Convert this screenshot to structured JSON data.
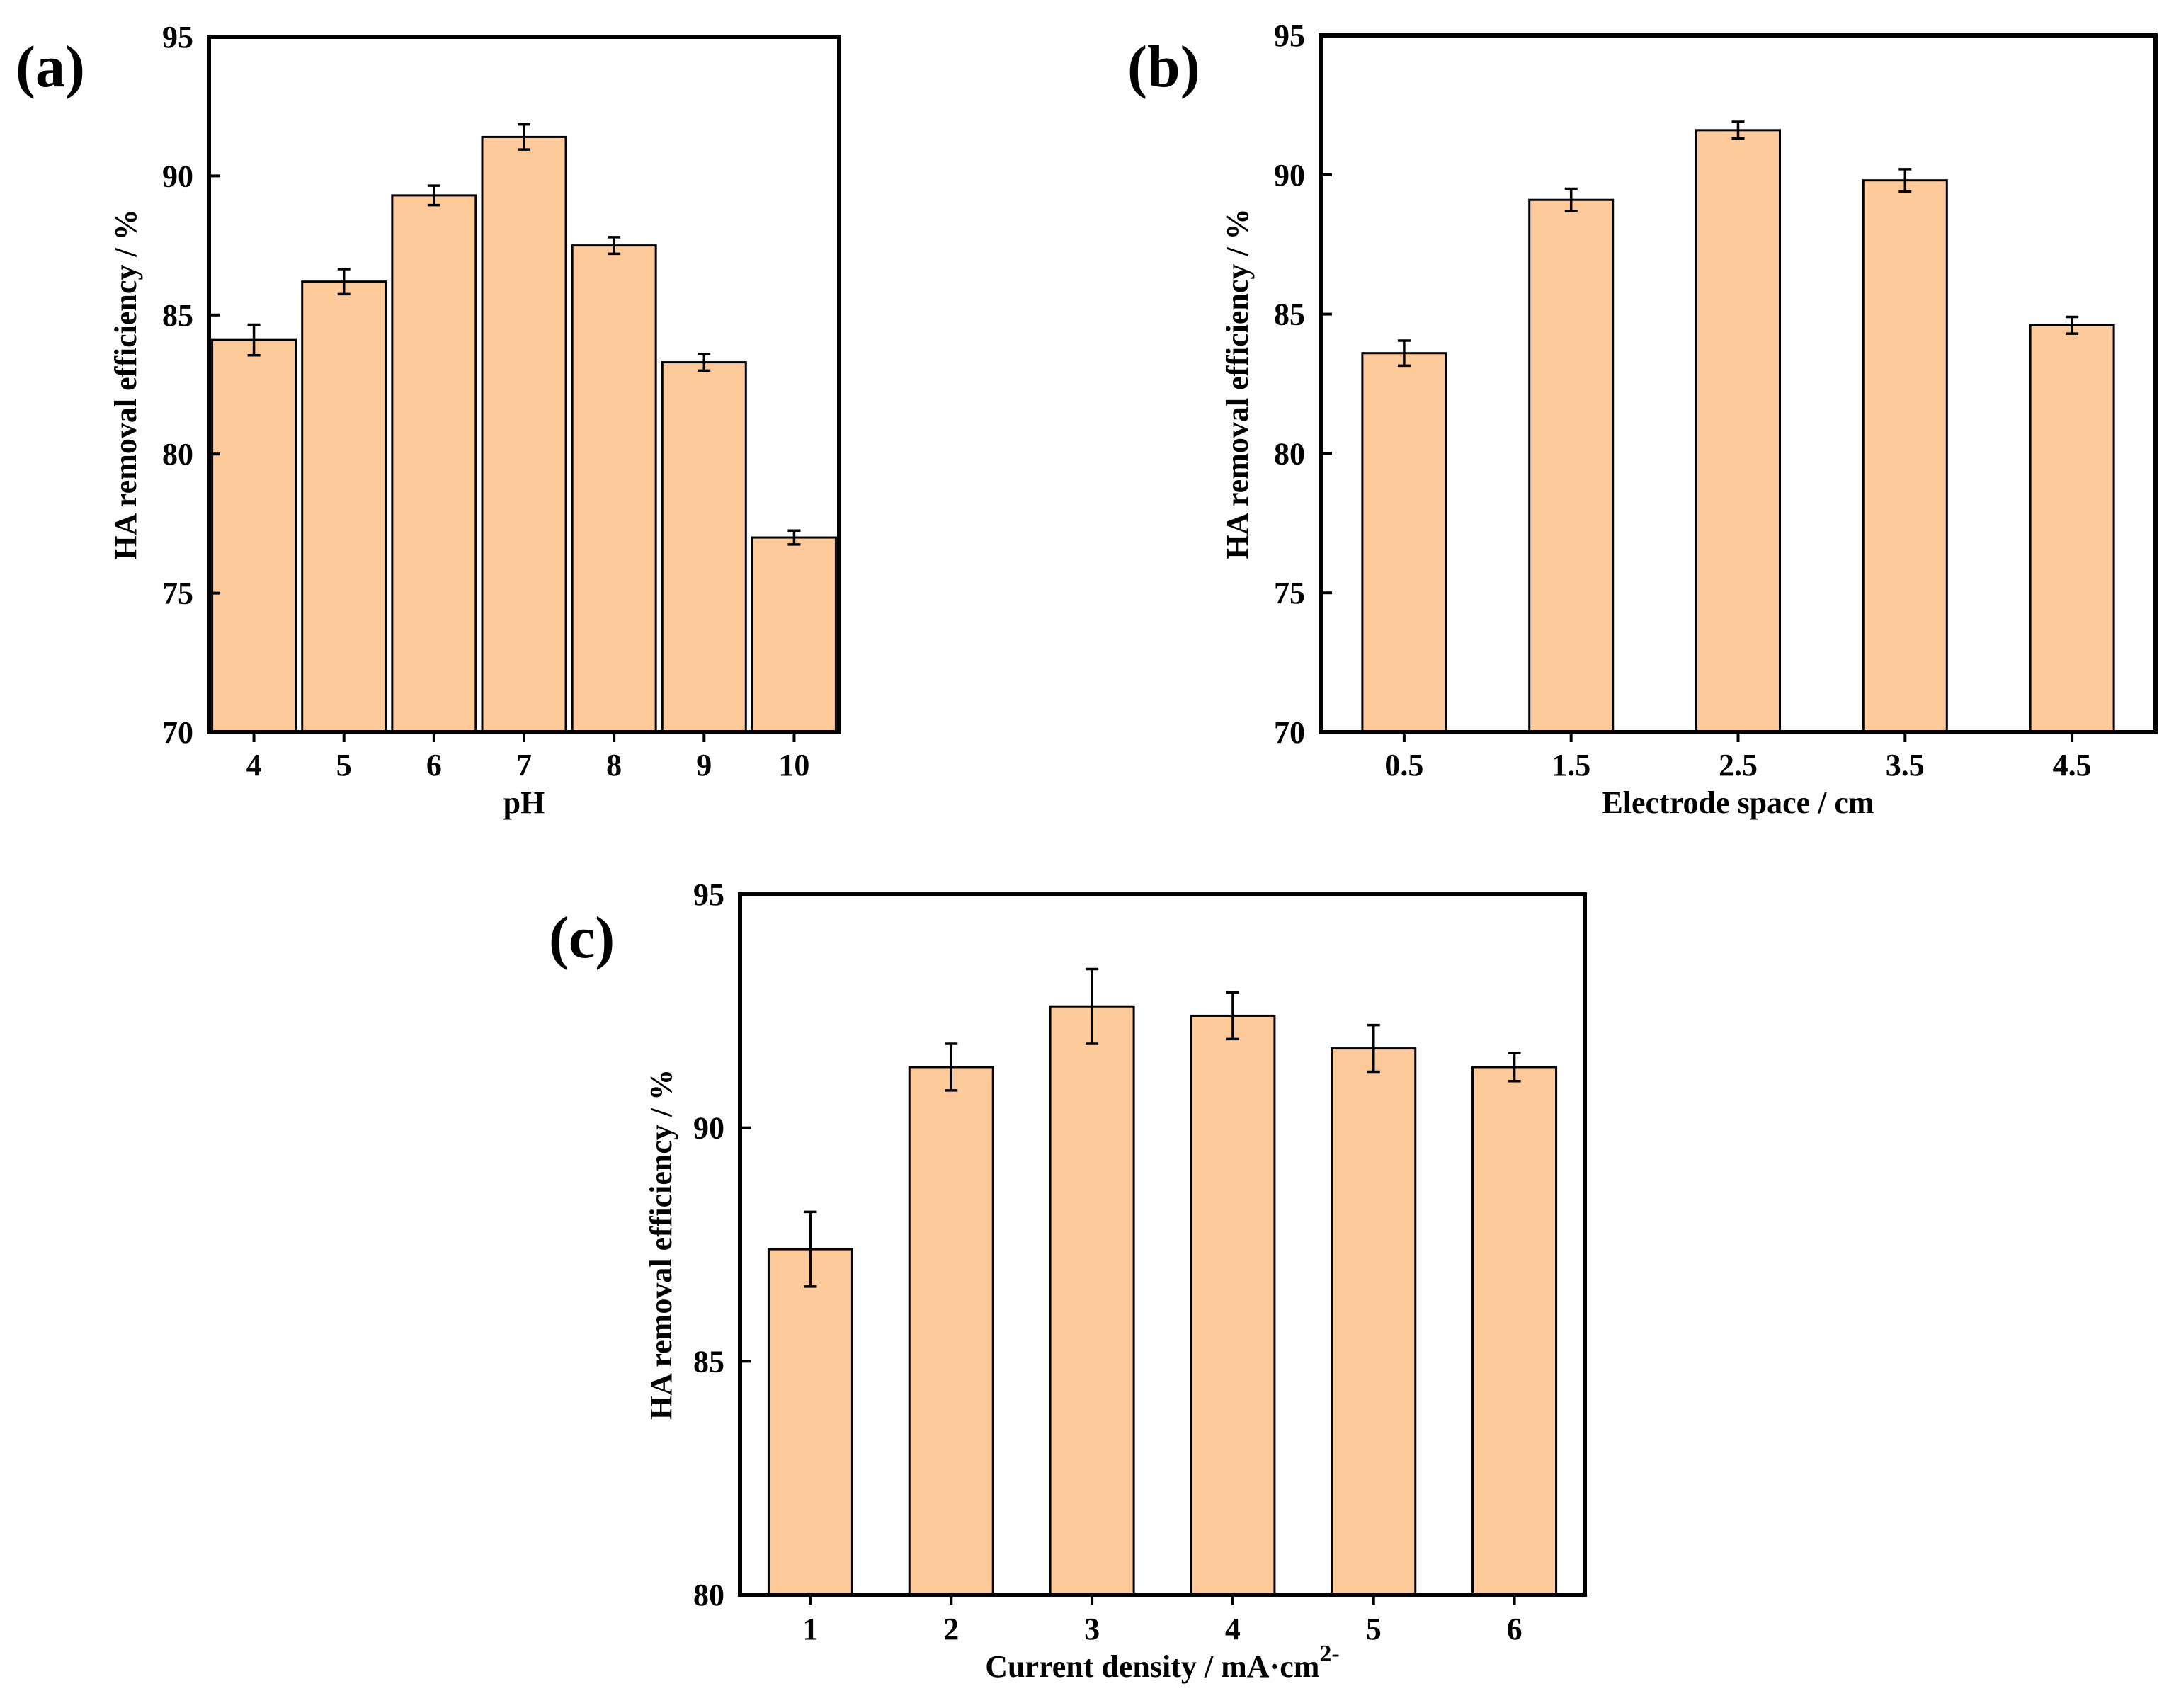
{
  "figure": {
    "colors": {
      "bar_fill": "#FFCA9A",
      "bar_stroke": "#000000",
      "frame": "#000000"
    }
  },
  "chart_data": [
    {
      "id": "a",
      "panel_label": "(a)",
      "type": "bar",
      "categories": [
        "4",
        "5",
        "6",
        "7",
        "8",
        "9",
        "10"
      ],
      "values": [
        84.1,
        86.2,
        89.3,
        91.4,
        87.5,
        83.3,
        77.0
      ],
      "errors": [
        0.55,
        0.45,
        0.35,
        0.45,
        0.3,
        0.3,
        0.25
      ],
      "xlabel": "pH",
      "ylabel": "HA removal efficiency / %",
      "ylim": [
        70,
        95
      ],
      "yticks": [
        70,
        75,
        80,
        85,
        90,
        95
      ],
      "grid": false
    },
    {
      "id": "b",
      "panel_label": "(b)",
      "type": "bar",
      "categories": [
        "0.5",
        "1.5",
        "2.5",
        "3.5",
        "4.5"
      ],
      "values": [
        83.6,
        89.1,
        91.6,
        89.8,
        84.6
      ],
      "errors": [
        0.45,
        0.4,
        0.3,
        0.4,
        0.3
      ],
      "xlabel": "Electrode space / cm",
      "ylabel": "HA removal efficiency / %",
      "ylim": [
        70,
        95
      ],
      "yticks": [
        70,
        75,
        80,
        85,
        90,
        95
      ],
      "grid": false
    },
    {
      "id": "c",
      "panel_label": "(c)",
      "type": "bar",
      "categories": [
        "1",
        "2",
        "3",
        "4",
        "5",
        "6"
      ],
      "values": [
        87.4,
        91.3,
        92.6,
        92.4,
        91.7,
        91.3
      ],
      "errors": [
        0.8,
        0.5,
        0.8,
        0.5,
        0.5,
        0.3
      ],
      "xlabel": "Current density / mA·cm",
      "xlabel_superscript": "2-",
      "ylabel": "HA removal efficiency / %",
      "ylim": [
        80,
        95
      ],
      "yticks": [
        80,
        85,
        90,
        95
      ],
      "grid": false
    }
  ]
}
